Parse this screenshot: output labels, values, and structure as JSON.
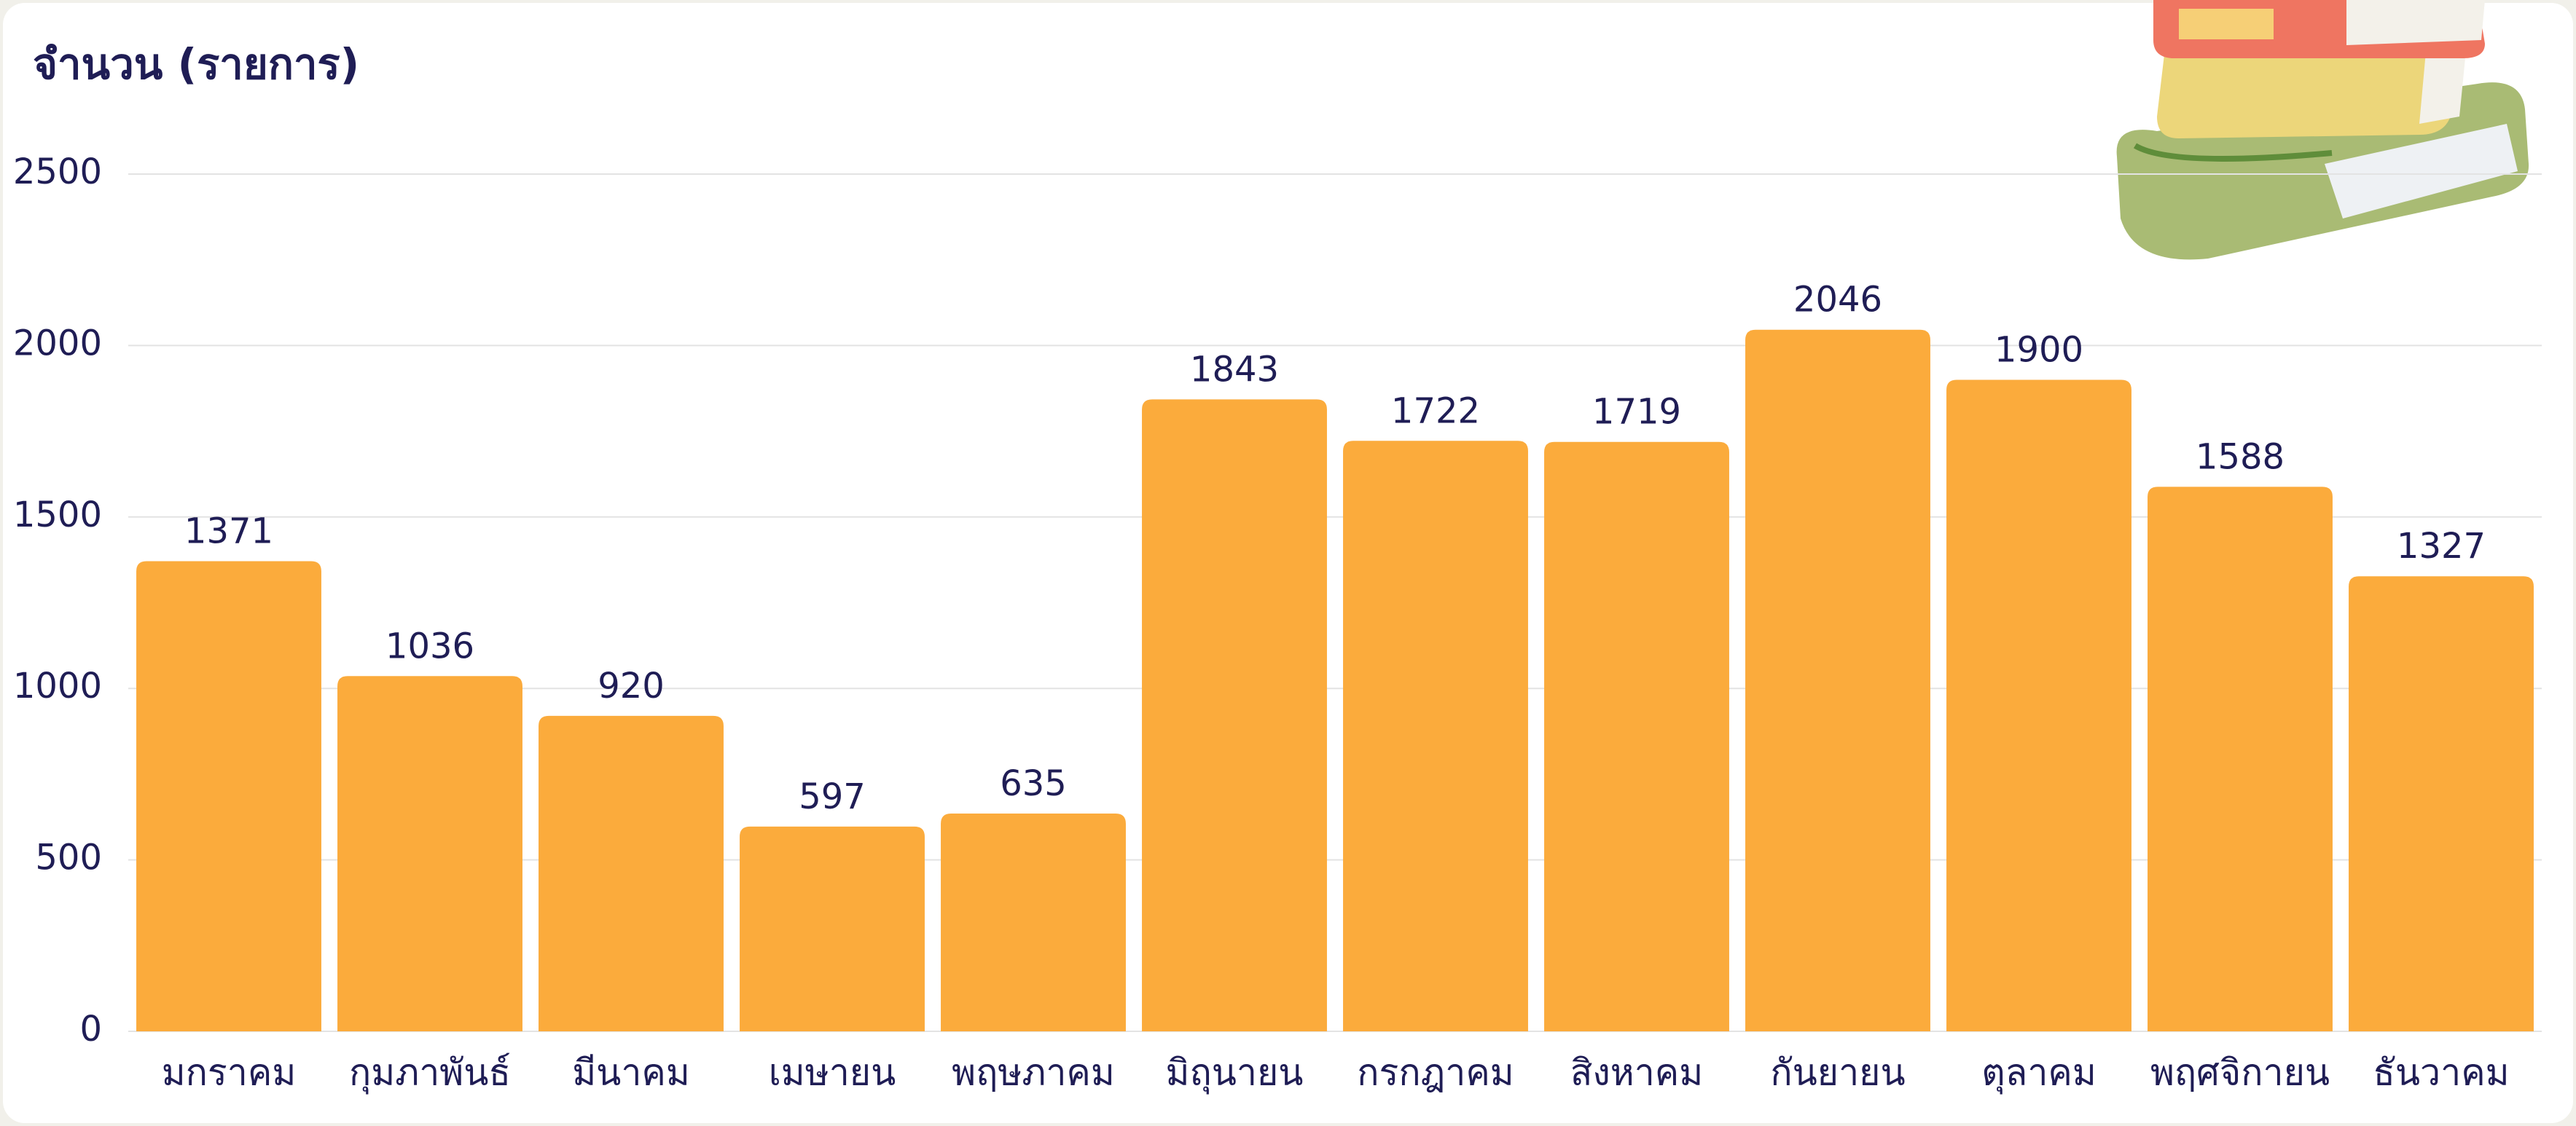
{
  "chart_data": {
    "type": "bar",
    "title": "จำนวน (รายการ)",
    "categories": [
      "มกราคม",
      "กุมภาพันธ์",
      "มีนาคม",
      "เมษายน",
      "พฤษภาคม",
      "มิถุนายน",
      "กรกฎาคม",
      "สิงหาคม",
      "กันยายน",
      "ตุลาคม",
      "พฤศจิกายน",
      "ธันวาคม"
    ],
    "values": [
      1371,
      1036,
      920,
      597,
      635,
      1843,
      1722,
      1719,
      2046,
      1900,
      1588,
      1327
    ],
    "color": "#fbab3c",
    "ylim": [
      0,
      2500
    ],
    "yticks": [
      0,
      500,
      1000,
      1500,
      2000,
      2500
    ],
    "grid": true
  }
}
